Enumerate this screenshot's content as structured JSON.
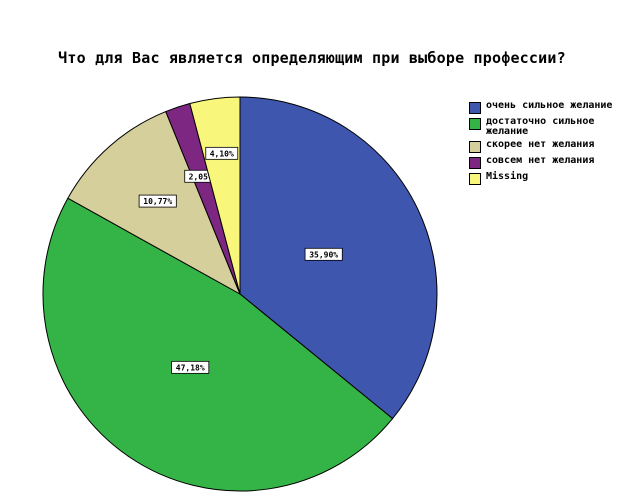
{
  "chart_data": {
    "type": "pie",
    "title": "Что для Вас является определяющим при выборе профессии?",
    "slices": [
      {
        "label": "очень сильное желание",
        "value": 35.9,
        "display": "35,90%",
        "color": "#3f56ae"
      },
      {
        "label": "достаточно сильное желание",
        "value": 47.18,
        "display": "47,18%",
        "color": "#34b446"
      },
      {
        "label": "скорее нет желания",
        "value": 10.77,
        "display": "10,77%",
        "color": "#d5cf9b"
      },
      {
        "label": "совсем нет желания",
        "value": 2.05,
        "display": "2,05%",
        "color": "#7d2682"
      },
      {
        "label": "Missing",
        "value": 4.1,
        "display": "4,10%",
        "color": "#f9f77b"
      }
    ],
    "legend_position": "right",
    "start_angle": "12 o'clock",
    "direction": "clockwise"
  },
  "legend": [
    {
      "label": "очень сильное желание",
      "color": "#3f56ae"
    },
    {
      "label": "достаточно сильное желание",
      "color": "#34b446"
    },
    {
      "label": "скорее нет желания",
      "color": "#d5cf9b"
    },
    {
      "label": "совсем нет желания",
      "color": "#7d2682"
    },
    {
      "label": "Missing",
      "color": "#f9f77b"
    }
  ]
}
